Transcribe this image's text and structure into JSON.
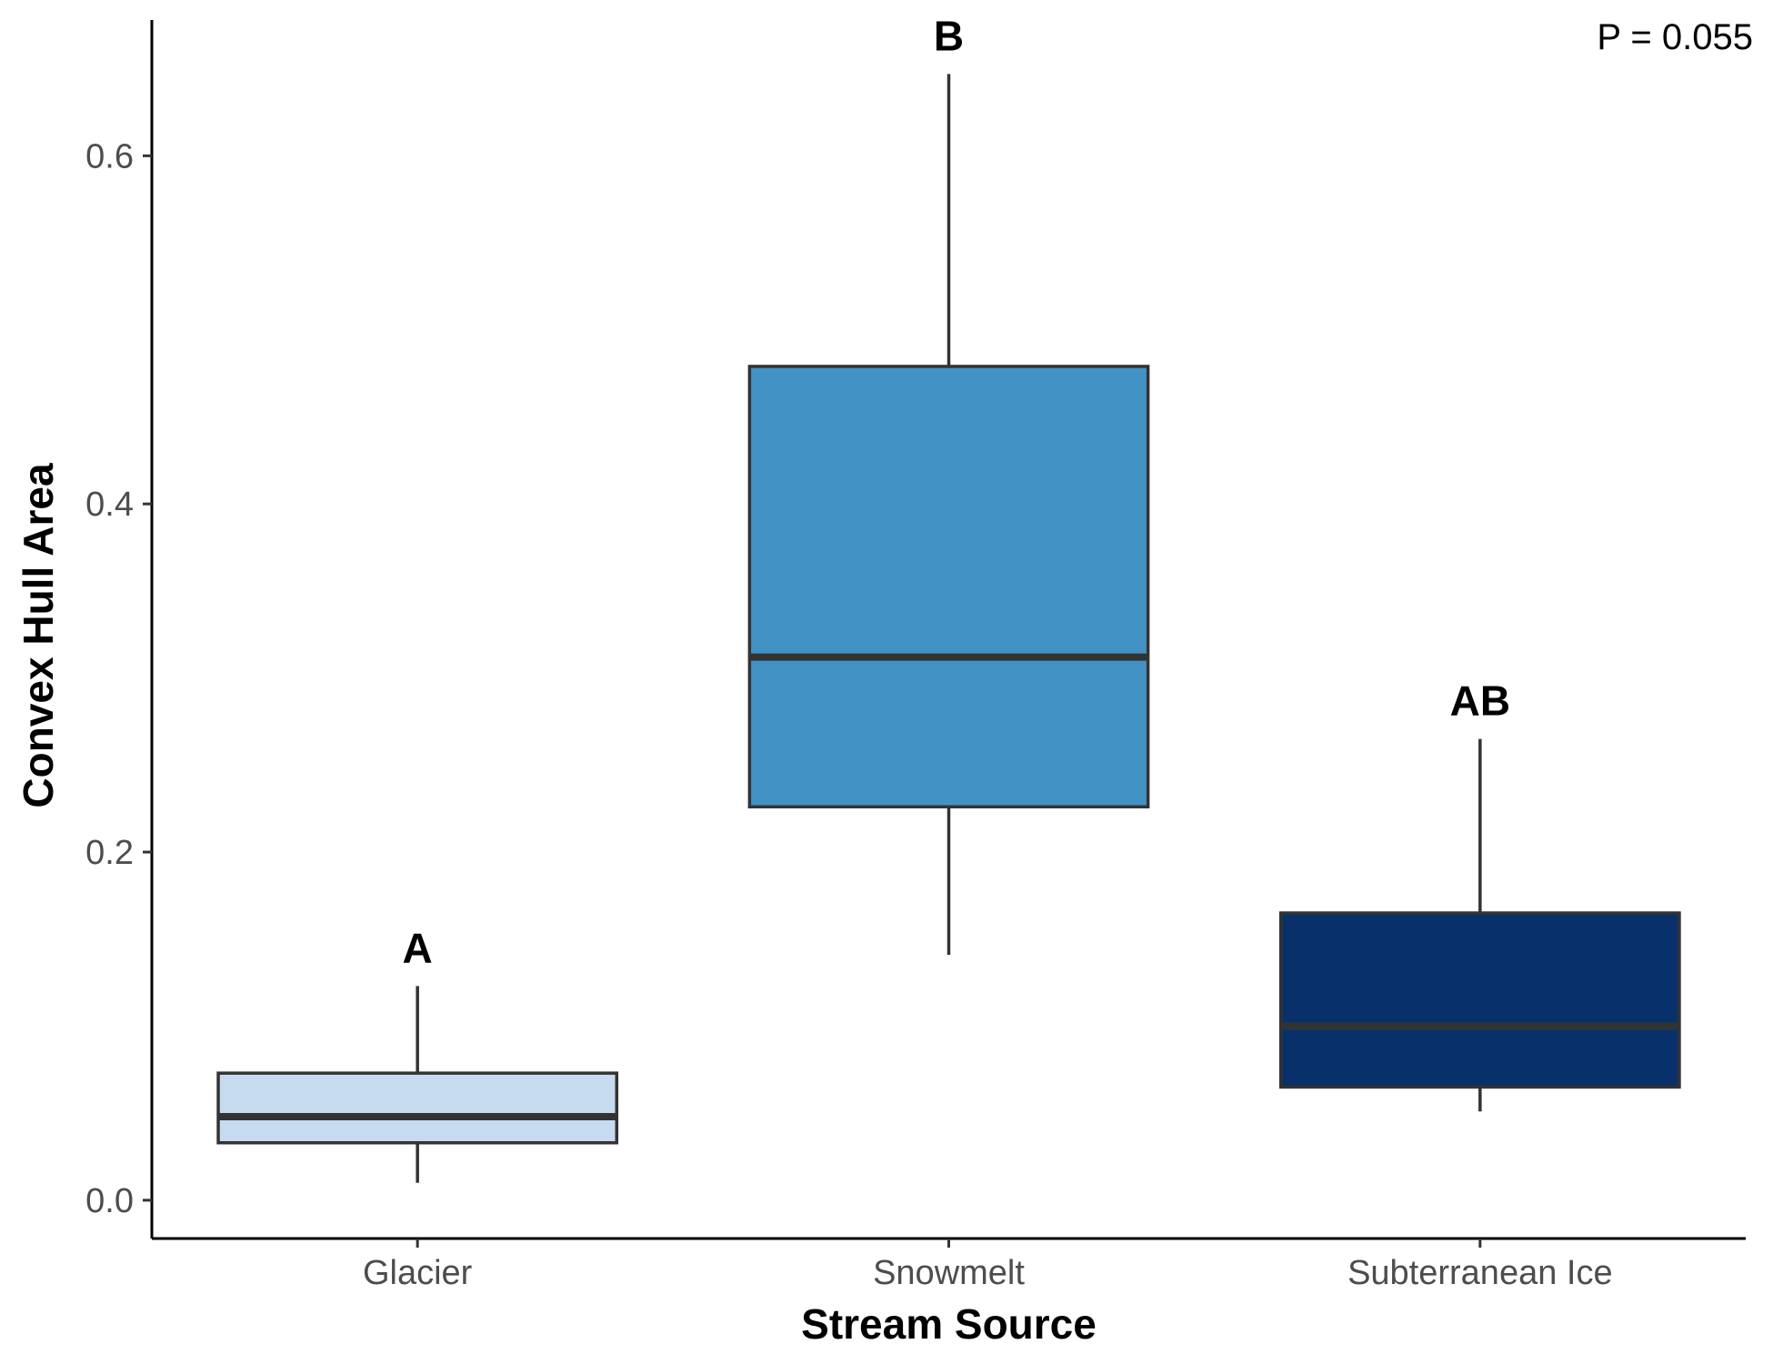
{
  "chart_data": {
    "type": "boxplot",
    "xlabel": "Stream Source",
    "ylabel": "Convex Hull Area",
    "annotation": "P = 0.055",
    "ylim": [
      -0.022,
      0.678
    ],
    "yticks": [
      0.0,
      0.2,
      0.4,
      0.6
    ],
    "ytick_labels": [
      "0.0",
      "0.2",
      "0.4",
      "0.6"
    ],
    "grid": false,
    "categories": [
      "Glacier",
      "Snowmelt",
      "Subterranean Ice"
    ],
    "boxes": [
      {
        "category": "Glacier",
        "whisker_low": 0.01,
        "q1": 0.033,
        "median": 0.048,
        "q3": 0.073,
        "whisker_high": 0.123,
        "letter": "A",
        "fill": "#c6dbef"
      },
      {
        "category": "Snowmelt",
        "whisker_low": 0.141,
        "q1": 0.226,
        "median": 0.312,
        "q3": 0.479,
        "whisker_high": 0.647,
        "letter": "B",
        "fill": "#4292c6"
      },
      {
        "category": "Subterranean Ice",
        "whisker_low": 0.051,
        "q1": 0.065,
        "median": 0.1,
        "q3": 0.165,
        "whisker_high": 0.265,
        "letter": "AB",
        "fill": "#08306b"
      }
    ]
  }
}
